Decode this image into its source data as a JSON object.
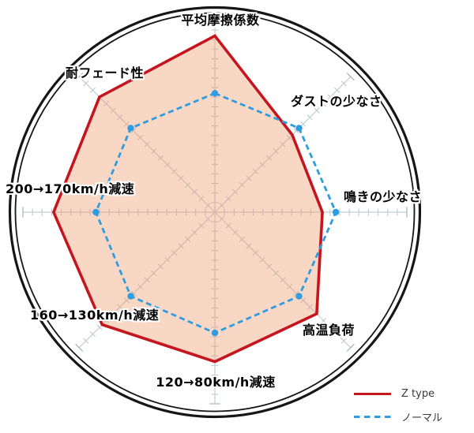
{
  "chart_data": {
    "type": "radar",
    "title": "",
    "categories": [
      "平均摩擦係数",
      "ダストの少なさ",
      "鳴きの少なさ",
      "高温負荷",
      "120→80km/h減速",
      "160→130km/h減速",
      "200→170km/h減速",
      "耐フェード性"
    ],
    "series": [
      {
        "name": "Z type",
        "style": "solid",
        "values": [
          92,
          57,
          56,
          75,
          78,
          83,
          84,
          85
        ]
      },
      {
        "name": "ノーマル",
        "style": "dashed",
        "values": [
          62,
          62,
          63,
          62,
          63,
          62,
          62,
          62
        ]
      }
    ],
    "scale_max": 100,
    "tick_divisions": 20,
    "axes_start": "top",
    "axes_direction": "clockwise",
    "legend_position": "bottom-right",
    "grid": "8 radial spokes with small cross ticks inside a double black circle"
  },
  "legend": {
    "z_label": "Z type",
    "normal_label": "ノーマル"
  },
  "colors": {
    "z_type_red": "#c5161f",
    "z_fill": "#ee9566",
    "z_fill_opacity": "0.38",
    "normal_blue": "#2e9ce0",
    "grid_tick": "#c2cdd5",
    "grid_tick_end": "#a4b2bc",
    "circle_black": "#161616",
    "label_text": "#000000",
    "legend_text": "#3a3a3a"
  }
}
